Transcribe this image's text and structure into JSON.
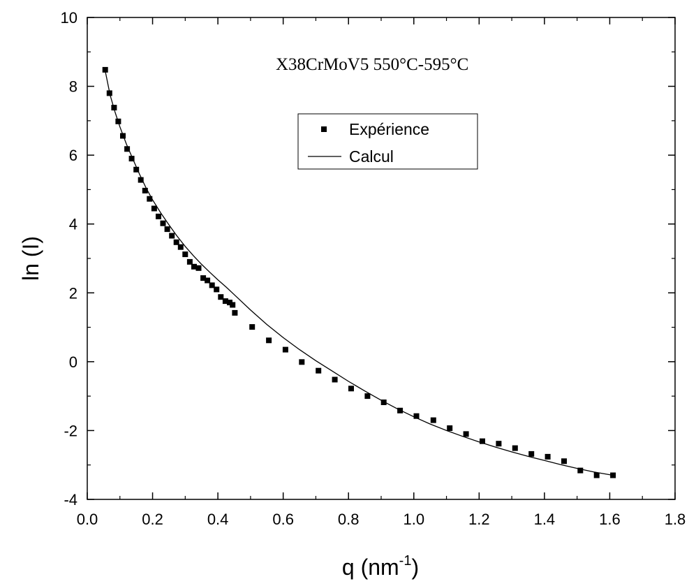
{
  "chart_data": {
    "type": "scatter",
    "annotation": "X38CrMoV5 550°C-595°C",
    "xlabel": {
      "main": "q (nm",
      "sup": "-1",
      "end": ")"
    },
    "ylabel": "ln (I)",
    "xlim": [
      0.0,
      1.8
    ],
    "ylim": [
      -4,
      10
    ],
    "xticks": [
      "0.0",
      "0.2",
      "0.4",
      "0.6",
      "0.8",
      "1.0",
      "1.2",
      "1.4",
      "1.6",
      "1.8"
    ],
    "yticks": [
      "-4",
      "-2",
      "0",
      "2",
      "4",
      "6",
      "8",
      "10"
    ],
    "grid": false,
    "legend_position": "upper-middle",
    "series": [
      {
        "name": "Expérience",
        "kind": "markers",
        "color": "#000000",
        "x": [
          0.055,
          0.068,
          0.082,
          0.095,
          0.109,
          0.122,
          0.136,
          0.15,
          0.164,
          0.177,
          0.191,
          0.205,
          0.218,
          0.232,
          0.245,
          0.259,
          0.273,
          0.286,
          0.3,
          0.314,
          0.327,
          0.341,
          0.355,
          0.368,
          0.382,
          0.396,
          0.409,
          0.423,
          0.436,
          0.445,
          0.452,
          0.505,
          0.556,
          0.607,
          0.657,
          0.708,
          0.758,
          0.808,
          0.858,
          0.908,
          0.958,
          1.008,
          1.06,
          1.11,
          1.16,
          1.21,
          1.26,
          1.31,
          1.36,
          1.41,
          1.46,
          1.51,
          1.56,
          1.61
        ],
        "y": [
          8.48,
          7.8,
          7.38,
          6.98,
          6.56,
          6.18,
          5.9,
          5.58,
          5.28,
          4.97,
          4.73,
          4.45,
          4.22,
          4.02,
          3.85,
          3.66,
          3.47,
          3.33,
          3.12,
          2.9,
          2.76,
          2.72,
          2.43,
          2.36,
          2.22,
          2.1,
          1.88,
          1.76,
          1.72,
          1.65,
          1.42,
          1.01,
          0.62,
          0.35,
          -0.01,
          -0.26,
          -0.52,
          -0.78,
          -1.0,
          -1.18,
          -1.42,
          -1.58,
          -1.7,
          -1.93,
          -2.1,
          -2.31,
          -2.38,
          -2.51,
          -2.68,
          -2.76,
          -2.89,
          -3.16,
          -3.3,
          -3.3
        ]
      },
      {
        "name": "Calcul",
        "kind": "line",
        "color": "#000000",
        "x": [
          0.055,
          0.07,
          0.085,
          0.1,
          0.12,
          0.14,
          0.16,
          0.18,
          0.2,
          0.225,
          0.25,
          0.275,
          0.3,
          0.325,
          0.35,
          0.375,
          0.4,
          0.425,
          0.45,
          0.5,
          0.55,
          0.6,
          0.65,
          0.7,
          0.75,
          0.8,
          0.85,
          0.9,
          0.95,
          1.0,
          1.05,
          1.1,
          1.15,
          1.2,
          1.25,
          1.3,
          1.35,
          1.4,
          1.45,
          1.5,
          1.55,
          1.61
        ],
        "y": [
          8.45,
          7.75,
          7.25,
          6.82,
          6.32,
          5.88,
          5.45,
          5.05,
          4.7,
          4.32,
          3.98,
          3.65,
          3.35,
          3.08,
          2.83,
          2.6,
          2.38,
          2.17,
          1.95,
          1.5,
          1.08,
          0.7,
          0.35,
          0.03,
          -0.27,
          -0.57,
          -0.85,
          -1.12,
          -1.37,
          -1.6,
          -1.81,
          -2.0,
          -2.17,
          -2.33,
          -2.48,
          -2.62,
          -2.75,
          -2.87,
          -2.99,
          -3.1,
          -3.2,
          -3.3
        ]
      }
    ]
  }
}
